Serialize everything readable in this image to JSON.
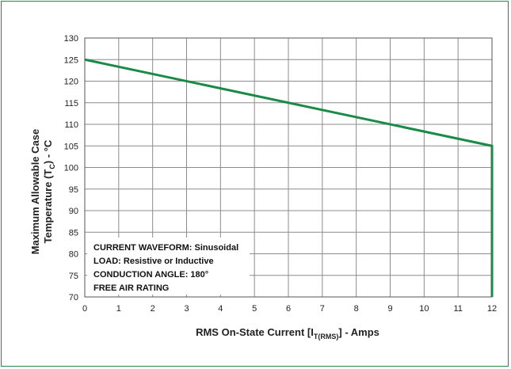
{
  "chart_data": {
    "type": "line",
    "xlabel": {
      "main": "RMS On-State Current [I",
      "sub": "T(RMS)",
      "end": "] - Amps"
    },
    "ylabel": {
      "line1": "Maximum Allowable Case",
      "line2_main": "Temperature (T",
      "line2_sub": "C",
      "line2_end": ") - °C"
    },
    "xlim": [
      0,
      12
    ],
    "ylim": [
      70,
      130
    ],
    "x_ticks": [
      0,
      1,
      2,
      3,
      4,
      5,
      6,
      7,
      8,
      9,
      10,
      11,
      12
    ],
    "y_ticks": [
      70,
      75,
      80,
      85,
      90,
      95,
      100,
      105,
      110,
      115,
      120,
      125,
      130
    ],
    "grid": true,
    "series": [
      {
        "x": [
          0,
          12,
          12
        ],
        "y": [
          125,
          105,
          70
        ]
      }
    ],
    "annotation_lines": [
      "CURRENT WAVEFORM: Sinusoidal",
      "LOAD: Resistive or Inductive",
      "CONDUCTION ANGLE: 180°",
      "FREE AIR RATING"
    ],
    "colors": {
      "line": "#1a8a47",
      "grid": "#8c8c8c",
      "frame": "#1d8a4a"
    }
  }
}
